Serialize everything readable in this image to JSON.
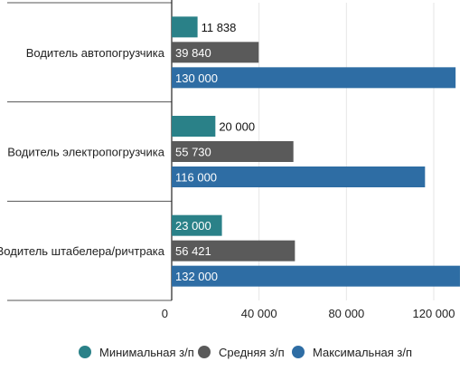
{
  "chart_data": {
    "type": "bar",
    "orientation": "horizontal",
    "categories": [
      "Водитель автопогрузчика",
      "Водитель электропогрузчика",
      "Водитель штабелера/ричтрака"
    ],
    "series": [
      {
        "name": "Минимальная з/п",
        "values": [
          11838,
          20000,
          23000
        ],
        "labels": [
          "11 838",
          "20 000",
          "23 000"
        ],
        "color": "#2a8188"
      },
      {
        "name": "Средняя з/п",
        "values": [
          39840,
          55730,
          56421
        ],
        "labels": [
          "39 840",
          "55 730",
          "56 421"
        ],
        "color": "#5a5a5a"
      },
      {
        "name": "Максимальная з/п",
        "values": [
          130000,
          116000,
          132000
        ],
        "labels": [
          "130 000",
          "116 000",
          "132 000"
        ],
        "color": "#2e6da4"
      }
    ],
    "x_ticks": [
      0,
      40000,
      80000,
      120000
    ],
    "x_tick_labels": [
      "0",
      "40 000",
      "80 000",
      "120 000"
    ],
    "xlim": [
      0,
      132000
    ],
    "grid": true,
    "legend_position": "bottom",
    "title": "",
    "xlabel": "",
    "ylabel": ""
  }
}
